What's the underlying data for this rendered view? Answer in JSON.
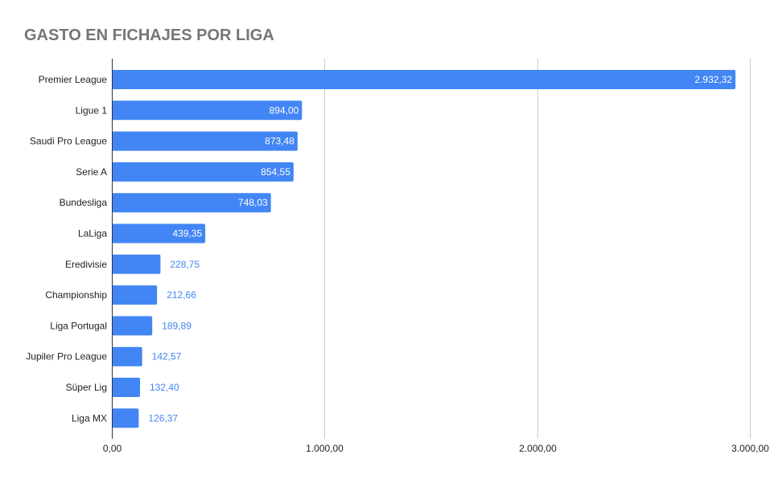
{
  "chart_data": {
    "type": "bar",
    "orientation": "horizontal",
    "title": "GASTO EN FICHAJES POR LIGA",
    "xlabel": "",
    "ylabel": "",
    "categories": [
      "Premier League",
      "Ligue 1",
      "Saudi Pro League",
      "Serie A",
      "Bundesliga",
      "LaLiga",
      "Eredivisie",
      "Championship",
      "Liga Portugal",
      "Jupiler Pro League",
      "Süper Lig",
      "Liga MX"
    ],
    "values": [
      2932.32,
      894.0,
      873.48,
      854.55,
      748.03,
      439.35,
      228.75,
      212.66,
      189.89,
      142.57,
      132.4,
      126.37
    ],
    "value_labels": [
      "2.932,32",
      "894,00",
      "873,48",
      "854,55",
      "748,03",
      "439,35",
      "228,75",
      "212,66",
      "189,89",
      "142,57",
      "132,40",
      "126,37"
    ],
    "xlim": [
      0,
      3000
    ],
    "ticks": [
      0,
      1000,
      2000,
      3000
    ],
    "tick_labels": [
      "0,00",
      "1.000,00",
      "2.000,00",
      "3.000,00"
    ],
    "grid": true,
    "legend": "none",
    "bar_color": "#4285f4"
  }
}
